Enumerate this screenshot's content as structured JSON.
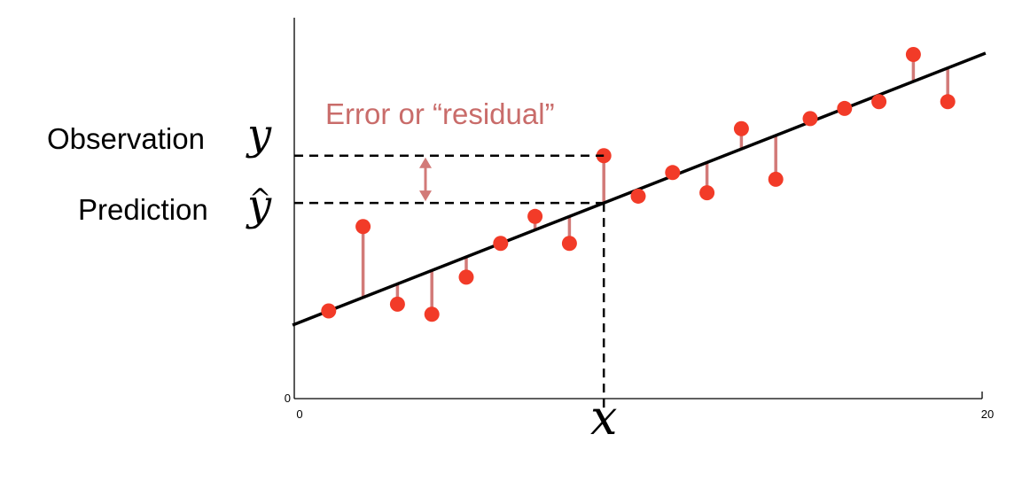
{
  "chart_data": {
    "type": "scatter",
    "title": "",
    "xlabel": "x",
    "ylabel": "",
    "xlim": [
      0,
      20
    ],
    "ylim": [
      0,
      11
    ],
    "x_ticks": [
      "0",
      "20"
    ],
    "y_ticks": [
      "0"
    ],
    "regression_line": {
      "intercept": 2.2,
      "slope": 0.4
    },
    "series": [
      {
        "points": [
          {
            "x": 1.0,
            "y": 2.6
          },
          {
            "x": 2.0,
            "y": 5.1
          },
          {
            "x": 3.0,
            "y": 2.8
          },
          {
            "x": 4.0,
            "y": 2.5
          },
          {
            "x": 5.0,
            "y": 3.6
          },
          {
            "x": 6.0,
            "y": 4.6
          },
          {
            "x": 7.0,
            "y": 5.4
          },
          {
            "x": 8.0,
            "y": 4.6
          },
          {
            "x": 9.0,
            "y": 7.2
          },
          {
            "x": 10.0,
            "y": 6.0
          },
          {
            "x": 11.0,
            "y": 6.7
          },
          {
            "x": 12.0,
            "y": 6.1
          },
          {
            "x": 13.0,
            "y": 8.0
          },
          {
            "x": 14.0,
            "y": 6.5
          },
          {
            "x": 15.0,
            "y": 8.3
          },
          {
            "x": 16.0,
            "y": 8.6
          },
          {
            "x": 17.0,
            "y": 8.8
          },
          {
            "x": 18.0,
            "y": 10.2
          },
          {
            "x": 19.0,
            "y": 8.8
          }
        ]
      }
    ],
    "highlight": {
      "x": 9.0,
      "observation_y": 7.2,
      "prediction_y": 5.8
    },
    "annotations": {
      "observation_label": "Observation",
      "observation_symbol": "y",
      "prediction_label": "Prediction",
      "prediction_symbol": "y",
      "prediction_hat": "^",
      "error_label": "Error or “residual”"
    }
  },
  "colors": {
    "points": "#f23b28",
    "residuals": "#d27a78",
    "error_text": "#c96c6a",
    "line": "#000000"
  }
}
